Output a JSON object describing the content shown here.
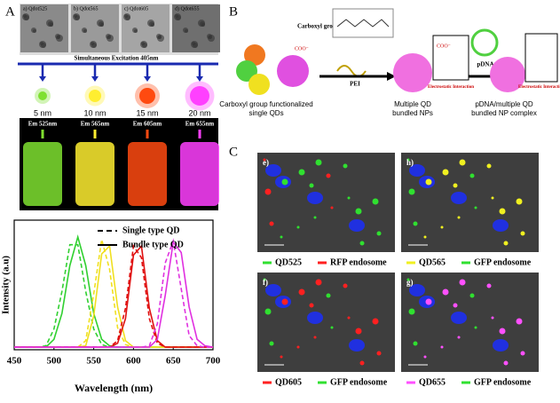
{
  "panel_a": {
    "label": "A",
    "tem_labels": [
      "a) Qdot525",
      "b) Qdot565",
      "c) Qdot605",
      "d) Qdot655"
    ],
    "excitation": "Simultaneous Excitation 405nm",
    "sizes": [
      "5 nm",
      "10 nm",
      "15 nm",
      "20 nm"
    ],
    "emissions": [
      "Em 525nm",
      "Em 565nm",
      "Em 605nm",
      "Em 655nm"
    ],
    "colors": [
      "#7fe030",
      "#ffee30",
      "#ff4a10",
      "#ff40ff"
    ]
  },
  "panel_b": {
    "label": "B",
    "carboxyl_group": "Carboxyl group",
    "coo": "COO⁻",
    "pei": "PEI",
    "pdna": "pDNA",
    "interaction": "Electrostatic Interaction",
    "captions": [
      [
        "Carboxyl group functionalized",
        "single QDs"
      ],
      [
        "Multiple QD",
        "bundled NPs"
      ],
      [
        "pDNA/multiple QD",
        "bundled NP complex"
      ]
    ]
  },
  "panel_c": {
    "label": "C",
    "images": [
      {
        "tag": "e)",
        "qd": "QD525",
        "qd_color": "#30e030",
        "endosome": "RFP endosome",
        "endosome_color": "#ff2020"
      },
      {
        "tag": "h)",
        "qd": "QD565",
        "qd_color": "#f0f020",
        "endosome": "GFP endosome",
        "endosome_color": "#30e030"
      },
      {
        "tag": "f)",
        "qd": "QD605",
        "qd_color": "#ff2020",
        "endosome": "GFP endosome",
        "endosome_color": "#30e030"
      },
      {
        "tag": "g)",
        "qd": "QD655",
        "qd_color": "#ff50ff",
        "endosome": "GFP endosome",
        "endosome_color": "#30e030"
      }
    ]
  },
  "chart_data": {
    "type": "line",
    "x_label": "Wavelength (nm)",
    "y_label": "Intensity (a.u)",
    "legend": [
      {
        "label": "Single type QD",
        "dashed": true
      },
      {
        "label": "Bundle type QD",
        "dashed": false
      }
    ],
    "legend_position": "upper right",
    "x": [
      450,
      460,
      470,
      480,
      490,
      500,
      510,
      520,
      530,
      540,
      550,
      560,
      570,
      580,
      590,
      600,
      610,
      620,
      630,
      640,
      650,
      660,
      670,
      680,
      690,
      700
    ],
    "series": [
      {
        "color": "#30d030",
        "dashed": true,
        "values": [
          0.02,
          0.02,
          0.02,
          0.02,
          0.03,
          0.16,
          0.45,
          0.81,
          0.81,
          0.45,
          0.16,
          0.04,
          0.02,
          0.02,
          0.02,
          0.02,
          0.02,
          0.02,
          0.02,
          0.02,
          0.02,
          0.02,
          0.02,
          0.02,
          0.02,
          0.02
        ]
      },
      {
        "color": "#30d030",
        "dashed": false,
        "values": [
          0.02,
          0.02,
          0.02,
          0.02,
          0.02,
          0.08,
          0.28,
          0.65,
          0.87,
          0.65,
          0.28,
          0.08,
          0.03,
          0.02,
          0.02,
          0.02,
          0.02,
          0.02,
          0.02,
          0.02,
          0.02,
          0.02,
          0.02,
          0.02,
          0.02,
          0.02
        ]
      },
      {
        "color": "#f0e020",
        "dashed": true,
        "values": [
          0.02,
          0.02,
          0.02,
          0.02,
          0.02,
          0.02,
          0.02,
          0.02,
          0.02,
          0.07,
          0.43,
          0.85,
          0.62,
          0.17,
          0.04,
          0.02,
          0.02,
          0.02,
          0.02,
          0.02,
          0.02,
          0.02,
          0.02,
          0.02,
          0.02,
          0.02
        ]
      },
      {
        "color": "#f0e020",
        "dashed": false,
        "values": [
          0.02,
          0.02,
          0.02,
          0.02,
          0.02,
          0.02,
          0.02,
          0.02,
          0.02,
          0.03,
          0.26,
          0.74,
          0.8,
          0.33,
          0.07,
          0.02,
          0.02,
          0.02,
          0.02,
          0.02,
          0.02,
          0.02,
          0.02,
          0.02,
          0.02,
          0.02
        ]
      },
      {
        "color": "#e01010",
        "dashed": true,
        "values": [
          0.02,
          0.02,
          0.02,
          0.02,
          0.02,
          0.02,
          0.02,
          0.02,
          0.02,
          0.02,
          0.02,
          0.02,
          0.02,
          0.07,
          0.32,
          0.8,
          0.71,
          0.24,
          0.05,
          0.02,
          0.02,
          0.02,
          0.02,
          0.02,
          0.02,
          0.02
        ]
      },
      {
        "color": "#e01010",
        "dashed": false,
        "values": [
          0.02,
          0.02,
          0.02,
          0.02,
          0.02,
          0.02,
          0.02,
          0.02,
          0.02,
          0.02,
          0.02,
          0.02,
          0.02,
          0.05,
          0.24,
          0.73,
          0.8,
          0.32,
          0.07,
          0.02,
          0.02,
          0.02,
          0.02,
          0.02,
          0.02,
          0.02
        ]
      },
      {
        "color": "#e030e0",
        "dashed": true,
        "values": [
          0.02,
          0.02,
          0.02,
          0.02,
          0.02,
          0.02,
          0.02,
          0.02,
          0.02,
          0.02,
          0.02,
          0.02,
          0.02,
          0.02,
          0.02,
          0.02,
          0.02,
          0.03,
          0.2,
          0.67,
          0.84,
          0.47,
          0.11,
          0.03,
          0.02,
          0.02
        ]
      },
      {
        "color": "#e030e0",
        "dashed": false,
        "values": [
          0.02,
          0.02,
          0.02,
          0.02,
          0.02,
          0.02,
          0.02,
          0.02,
          0.02,
          0.02,
          0.02,
          0.02,
          0.02,
          0.02,
          0.02,
          0.02,
          0.02,
          0.02,
          0.08,
          0.42,
          0.83,
          0.75,
          0.33,
          0.08,
          0.03,
          0.02
        ]
      }
    ],
    "xlim": [
      450,
      700
    ],
    "ylim": [
      0,
      1
    ],
    "xticks": [
      450,
      500,
      550,
      600,
      650,
      700
    ]
  }
}
